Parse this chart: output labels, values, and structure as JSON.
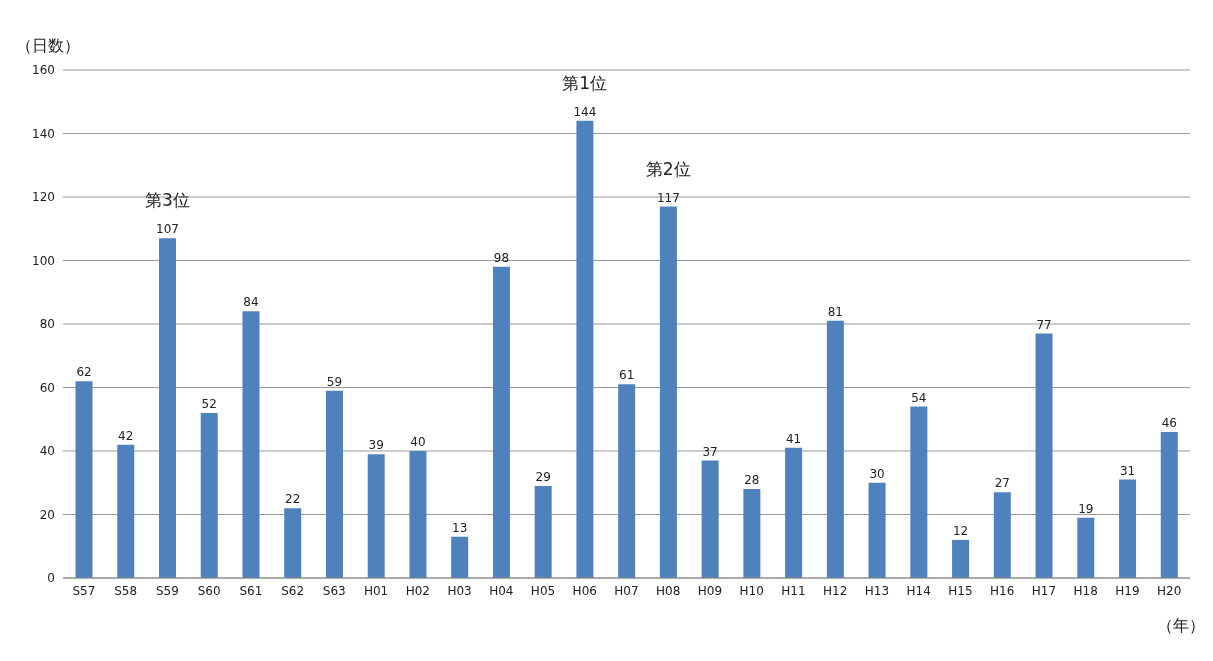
{
  "chart_data": {
    "type": "bar",
    "xlabel": "（年）",
    "ylabel": "（日数）",
    "categories": [
      "S57",
      "S58",
      "S59",
      "S60",
      "S61",
      "S62",
      "S63",
      "H01",
      "H02",
      "H03",
      "H04",
      "H05",
      "H06",
      "H07",
      "H08",
      "H09",
      "H10",
      "H11",
      "H12",
      "H13",
      "H14",
      "H15",
      "H16",
      "H17",
      "H18",
      "H19",
      "H20"
    ],
    "values": [
      62,
      42,
      107,
      52,
      84,
      22,
      59,
      39,
      40,
      13,
      98,
      29,
      144,
      61,
      117,
      37,
      28,
      41,
      81,
      30,
      54,
      12,
      27,
      77,
      19,
      31,
      46
    ],
    "color": "#4f81bd",
    "ylim": [
      0,
      160
    ],
    "yticks": [
      0,
      20,
      40,
      60,
      80,
      100,
      120,
      140,
      160
    ],
    "grid": "y",
    "data_labels": true,
    "legend": false,
    "annotations": [
      {
        "text": "第1位",
        "x": "H06",
        "y": 144
      },
      {
        "text": "第2位",
        "x": "H08",
        "y": 117
      },
      {
        "text": "第3位",
        "x": "S59",
        "y": 107
      }
    ]
  }
}
